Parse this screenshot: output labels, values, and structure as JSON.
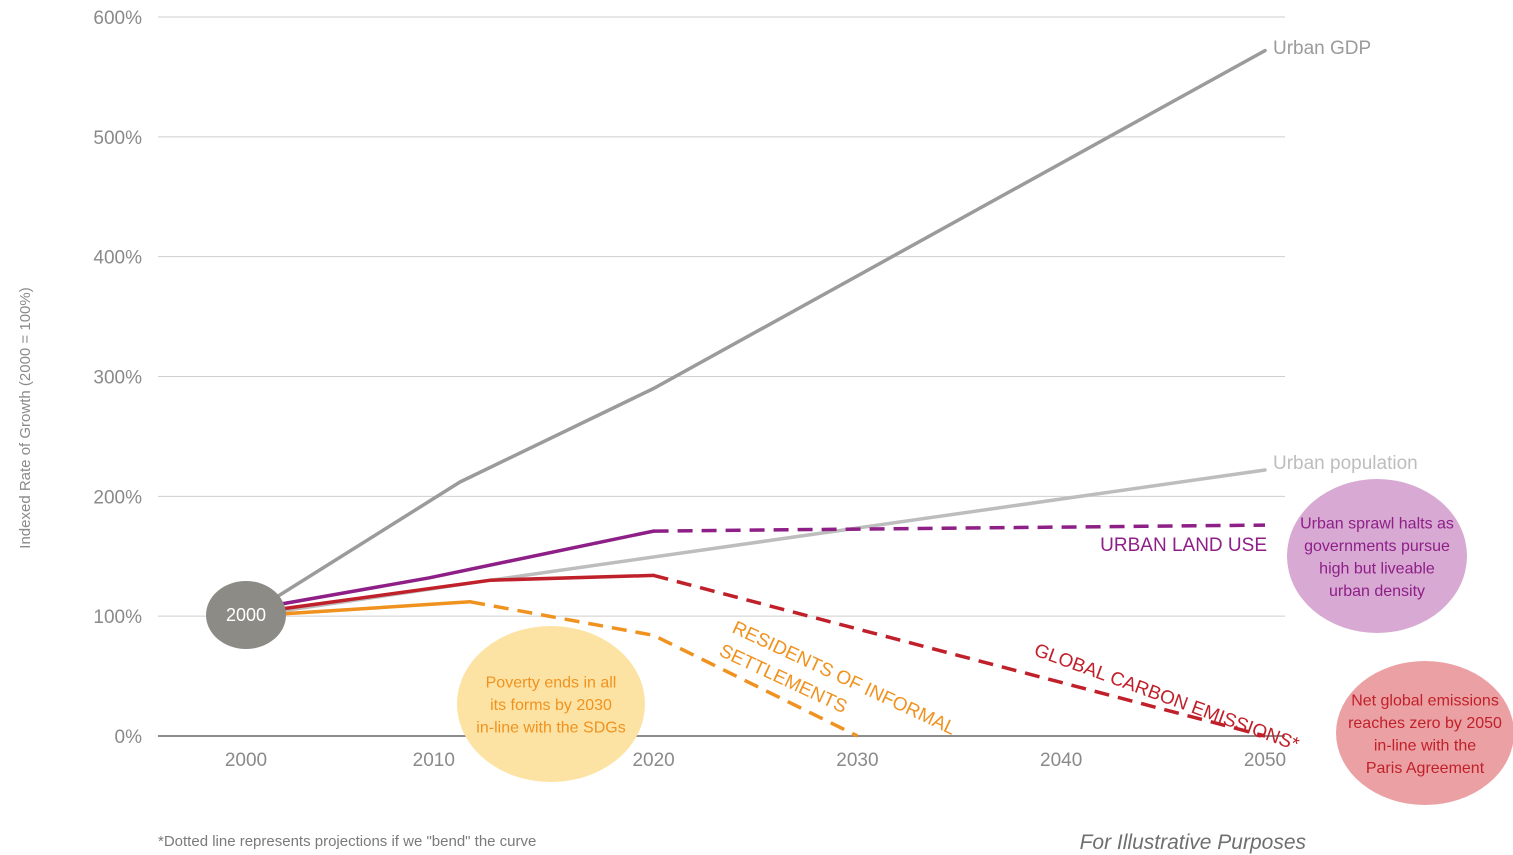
{
  "chart_data": {
    "type": "line",
    "ylabel": "Indexed Rate of Growth (2000 = 100%)",
    "xlabel": "",
    "xlim": [
      2000,
      2050
    ],
    "ylim": [
      0,
      600
    ],
    "x_ticks": [
      "2000",
      "2010",
      "2020",
      "2030",
      "2040",
      "2050"
    ],
    "y_ticks": [
      "0%",
      "100%",
      "200%",
      "300%",
      "400%",
      "500%",
      "600%"
    ],
    "grid": true,
    "start_marker": "2000",
    "series": [
      {
        "name": "Urban GDP",
        "color": "#9b9b9b",
        "solid": [
          [
            2000,
            100
          ],
          [
            2010.5,
            212
          ],
          [
            2020,
            290
          ],
          [
            2050,
            572
          ]
        ],
        "dashed": []
      },
      {
        "name": "Urban population",
        "color": "#bdbdbd",
        "solid": [
          [
            2000,
            100
          ],
          [
            2012,
            130
          ],
          [
            2050,
            222
          ]
        ],
        "dashed": []
      },
      {
        "name": "URBAN LAND USE",
        "color": "#8e1f87",
        "solid": [
          [
            2000,
            105
          ],
          [
            2009,
            132
          ],
          [
            2020,
            171
          ]
        ],
        "dashed": [
          [
            2020,
            171
          ],
          [
            2050,
            176
          ]
        ]
      },
      {
        "name": "GLOBAL CARBON EMISSIONS*",
        "color": "#c0202a",
        "solid": [
          [
            2000,
            102
          ],
          [
            2012,
            130
          ],
          [
            2020,
            134
          ]
        ],
        "dashed": [
          [
            2020,
            134
          ],
          [
            2050,
            0
          ]
        ]
      },
      {
        "name": "RESIDENTS OF INFORMAL SETTLEMENTS",
        "color": "#f0921f",
        "solid": [
          [
            2000,
            100
          ],
          [
            2011,
            112
          ]
        ],
        "dashed": [
          [
            2011,
            112
          ],
          [
            2020,
            84
          ],
          [
            2030,
            0
          ]
        ]
      }
    ],
    "annotations": [
      {
        "text": "Urban sprawl halts as governments pursue high but liveable urban density",
        "fill": "#d7a9d3",
        "color": "#8e1f87"
      },
      {
        "text": "Poverty ends in all its forms by 2030 in-line with the SDGs",
        "fill": "#fde3a3",
        "color": "#f0921f"
      },
      {
        "text": "Net global emissions reaches zero by 2050 in-line with the Paris Agreement",
        "fill": "#eba1a4",
        "color": "#c0202a"
      }
    ],
    "footnote": "*Dotted line represents projections if we \"bend\" the curve",
    "note": "For Illustrative Purposes"
  }
}
